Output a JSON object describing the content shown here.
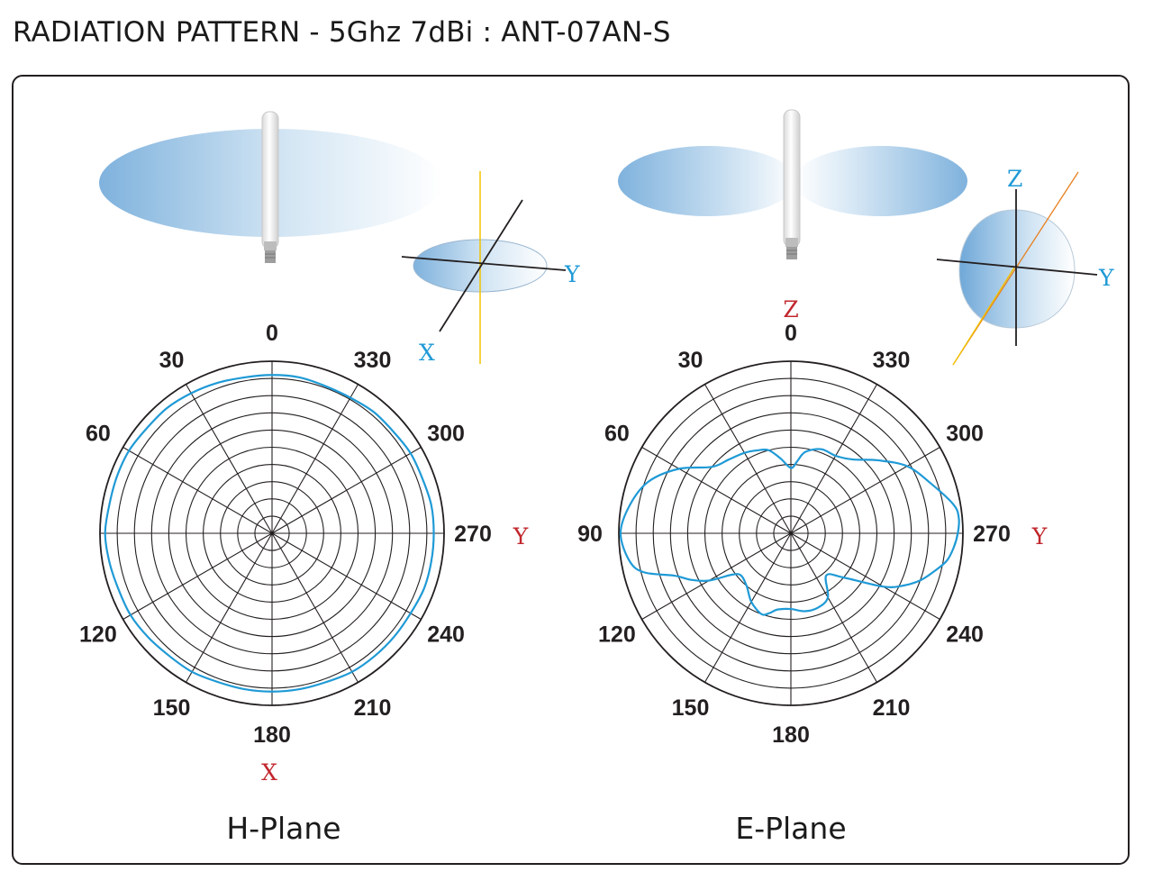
{
  "title": "RADIATION PATTERN - 5Ghz 7dBi : ANT-07AN-S",
  "colors": {
    "frame": "#231f20",
    "grid": "#231f20",
    "pattern": "#1f9ad6",
    "axis_red": "#c1272d",
    "axis_blue": "#1f9ad6",
    "axis_yellow": "#f2c300",
    "axis_orange": "#e8801e",
    "lobe_light": "#ffffff",
    "lobe_dark": "#7fb2dd"
  },
  "chart_data": [
    {
      "type": "polar",
      "plane": "H-Plane",
      "title": "H-Plane",
      "angular_ticks": [
        "0",
        "30",
        "60",
        "",
        "120",
        "150",
        "180",
        "210",
        "240",
        "270",
        "300",
        "330"
      ],
      "axis_labels": {
        "top": "",
        "right": "Y",
        "bottom": "X"
      },
      "rings": 10,
      "radial_range": [
        0,
        1
      ],
      "direction": "counterclockwise",
      "zero_location": "top",
      "series": [
        {
          "angles_deg": [
            0,
            10,
            20,
            30,
            40,
            50,
            60,
            70,
            80,
            90,
            100,
            110,
            120,
            130,
            140,
            150,
            160,
            170,
            180,
            190,
            200,
            210,
            220,
            230,
            240,
            250,
            260,
            270,
            280,
            290,
            300,
            310,
            320,
            330,
            340,
            350
          ],
          "values": [
            0.92,
            0.92,
            0.93,
            0.94,
            0.95,
            0.95,
            0.96,
            0.96,
            0.96,
            0.97,
            0.96,
            0.95,
            0.95,
            0.94,
            0.93,
            0.93,
            0.92,
            0.92,
            0.92,
            0.92,
            0.92,
            0.93,
            0.93,
            0.93,
            0.93,
            0.94,
            0.94,
            0.94,
            0.94,
            0.93,
            0.93,
            0.92,
            0.92,
            0.91,
            0.91,
            0.92
          ]
        }
      ]
    },
    {
      "type": "polar",
      "plane": "E-Plane",
      "title": "E-Plane",
      "angular_ticks": [
        "0",
        "30",
        "60",
        "90",
        "120",
        "150",
        "180",
        "210",
        "240",
        "270",
        "300",
        "330"
      ],
      "axis_labels": {
        "top": "Z",
        "right": "Y",
        "bottom": ""
      },
      "rings": 10,
      "radial_range": [
        0,
        1
      ],
      "direction": "counterclockwise",
      "zero_location": "top",
      "series": [
        {
          "angles_deg": [
            0,
            8,
            15,
            22,
            30,
            40,
            50,
            60,
            70,
            80,
            90,
            100,
            105,
            110,
            115,
            120,
            125,
            130,
            140,
            150,
            160,
            165,
            170,
            180,
            190,
            200,
            210,
            220,
            230,
            240,
            245,
            250,
            255,
            260,
            265,
            270,
            275,
            280,
            290,
            300,
            310,
            320,
            330,
            340,
            350,
            355
          ],
          "values": [
            0.38,
            0.44,
            0.5,
            0.52,
            0.54,
            0.56,
            0.6,
            0.75,
            0.88,
            0.95,
            0.99,
            0.95,
            0.88,
            0.72,
            0.64,
            0.55,
            0.42,
            0.38,
            0.4,
            0.46,
            0.5,
            0.48,
            0.45,
            0.44,
            0.46,
            0.46,
            0.43,
            0.32,
            0.4,
            0.62,
            0.72,
            0.8,
            0.86,
            0.92,
            0.95,
            0.97,
            0.98,
            0.96,
            0.86,
            0.78,
            0.66,
            0.56,
            0.52,
            0.52,
            0.48,
            0.42
          ]
        }
      ]
    }
  ]
}
